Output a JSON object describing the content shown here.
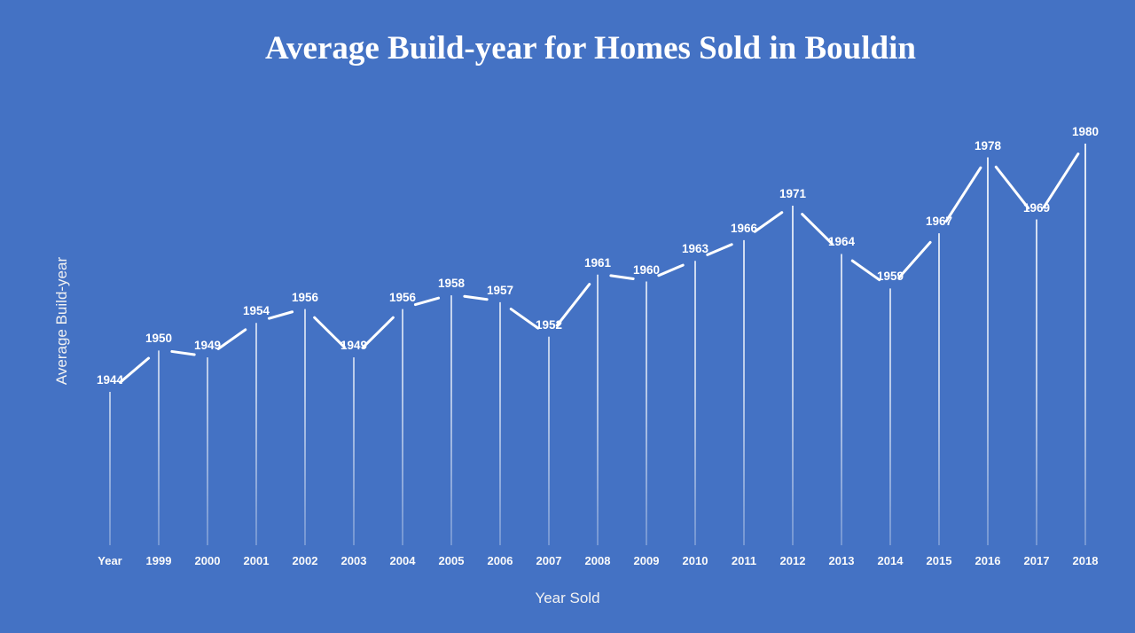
{
  "page": {
    "background_color": "#4472C4"
  },
  "chart_data": {
    "type": "line",
    "title": "Average Build-year for Homes Sold in Bouldin",
    "xlabel": "Year Sold",
    "ylabel": "Average Build-year",
    "categories": [
      "Year",
      "1999",
      "2000",
      "2001",
      "2002",
      "2003",
      "2004",
      "2005",
      "2006",
      "2007",
      "2008",
      "2009",
      "2010",
      "2011",
      "2012",
      "2013",
      "2014",
      "2015",
      "2016",
      "2017",
      "2018"
    ],
    "series": [
      {
        "name": "Average Build-year",
        "values": [
          1944,
          1950,
          1949,
          1954,
          1956,
          1949,
          1956,
          1958,
          1957,
          1952,
          1961,
          1960,
          1963,
          1966,
          1971,
          1964,
          1959,
          1967,
          1978,
          1969,
          1980
        ]
      }
    ],
    "value_range": [
      1944,
      1980
    ],
    "data_labels": "above",
    "drop_lines": true,
    "grid": false,
    "legend": "none",
    "axis_lines": "none",
    "colors": {
      "background": "#4472C4",
      "line": "#FFFFFF",
      "labels": "#FFFFFF"
    }
  }
}
